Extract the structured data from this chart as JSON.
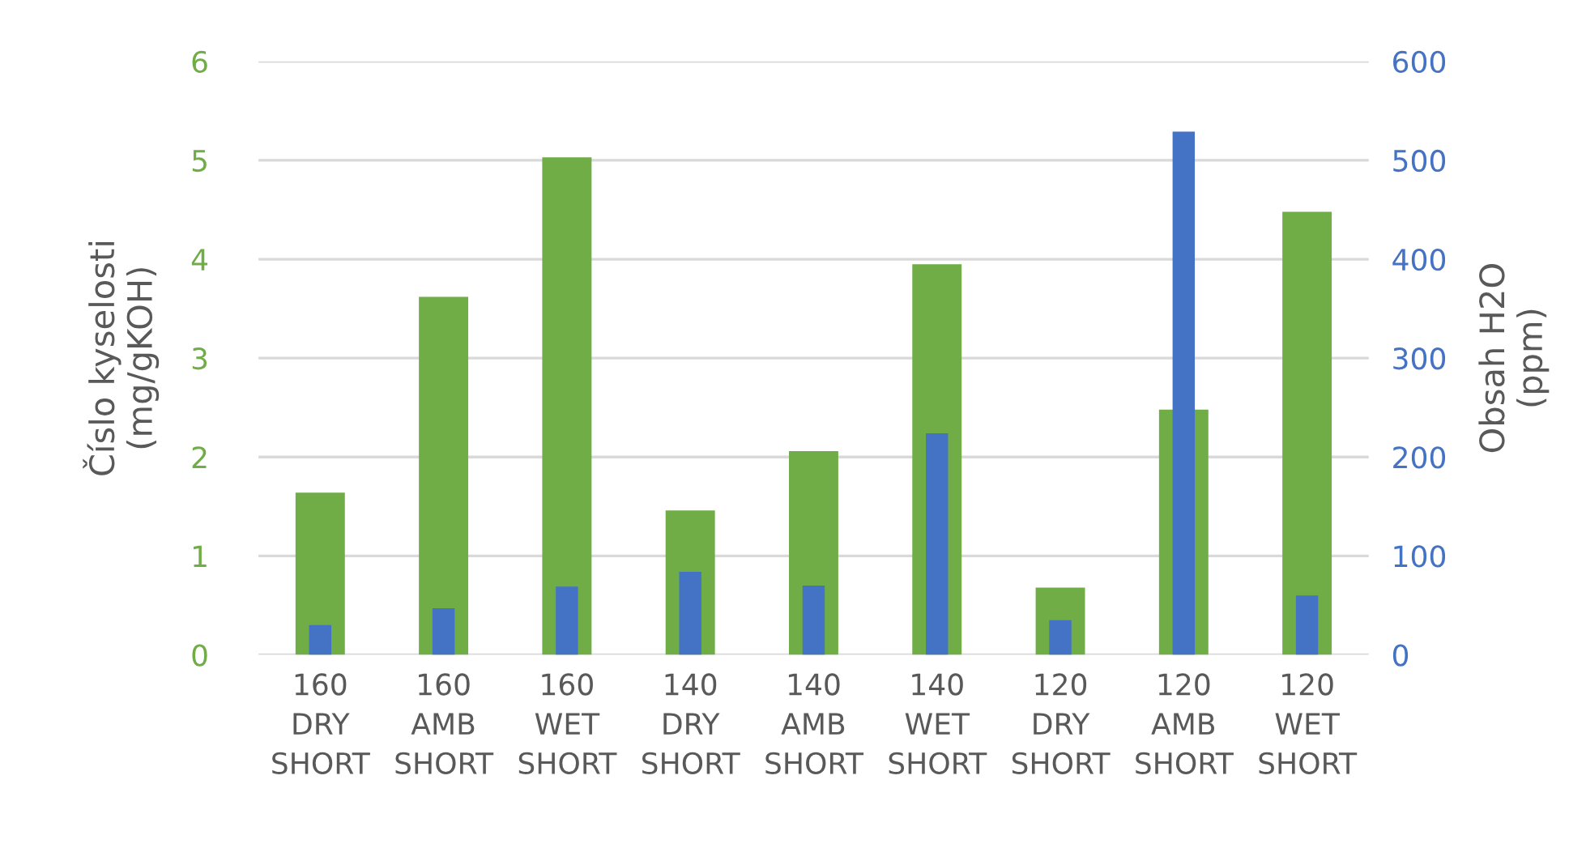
{
  "chart_data": {
    "type": "bar",
    "ylabel": "Číslo kyselosti\n(mg/gKOH)",
    "y2label": "Obsah H2O\n(ppm)",
    "categories": [
      "160\nDRY\nSHORT",
      "160\nAMB\nSHORT",
      "160\nWET\nSHORT",
      "140\nDRY\nSHORT",
      "140\nAMB\nSHORT",
      "140\nWET\nSHORT",
      "120\nDRY\nSHORT",
      "120\nAMB\nSHORT",
      "120\nWET\nSHORT"
    ],
    "series": [
      {
        "color": "#70ad47",
        "values": [
          1.64,
          3.62,
          5.03,
          1.46,
          2.06,
          3.95,
          0.68,
          2.48,
          4.48
        ]
      },
      {
        "color": "#4472c4",
        "axis": "y2",
        "values": [
          30,
          47,
          69,
          84,
          70,
          224,
          35,
          529,
          60
        ]
      }
    ],
    "ylim": [
      0,
      6
    ],
    "yticks": [
      0,
      1,
      2,
      3,
      4,
      5,
      6
    ],
    "y2lim": [
      0,
      600
    ],
    "y2ticks": [
      0,
      100,
      200,
      300,
      400,
      500,
      600
    ],
    "grid": "y",
    "legend": false
  }
}
